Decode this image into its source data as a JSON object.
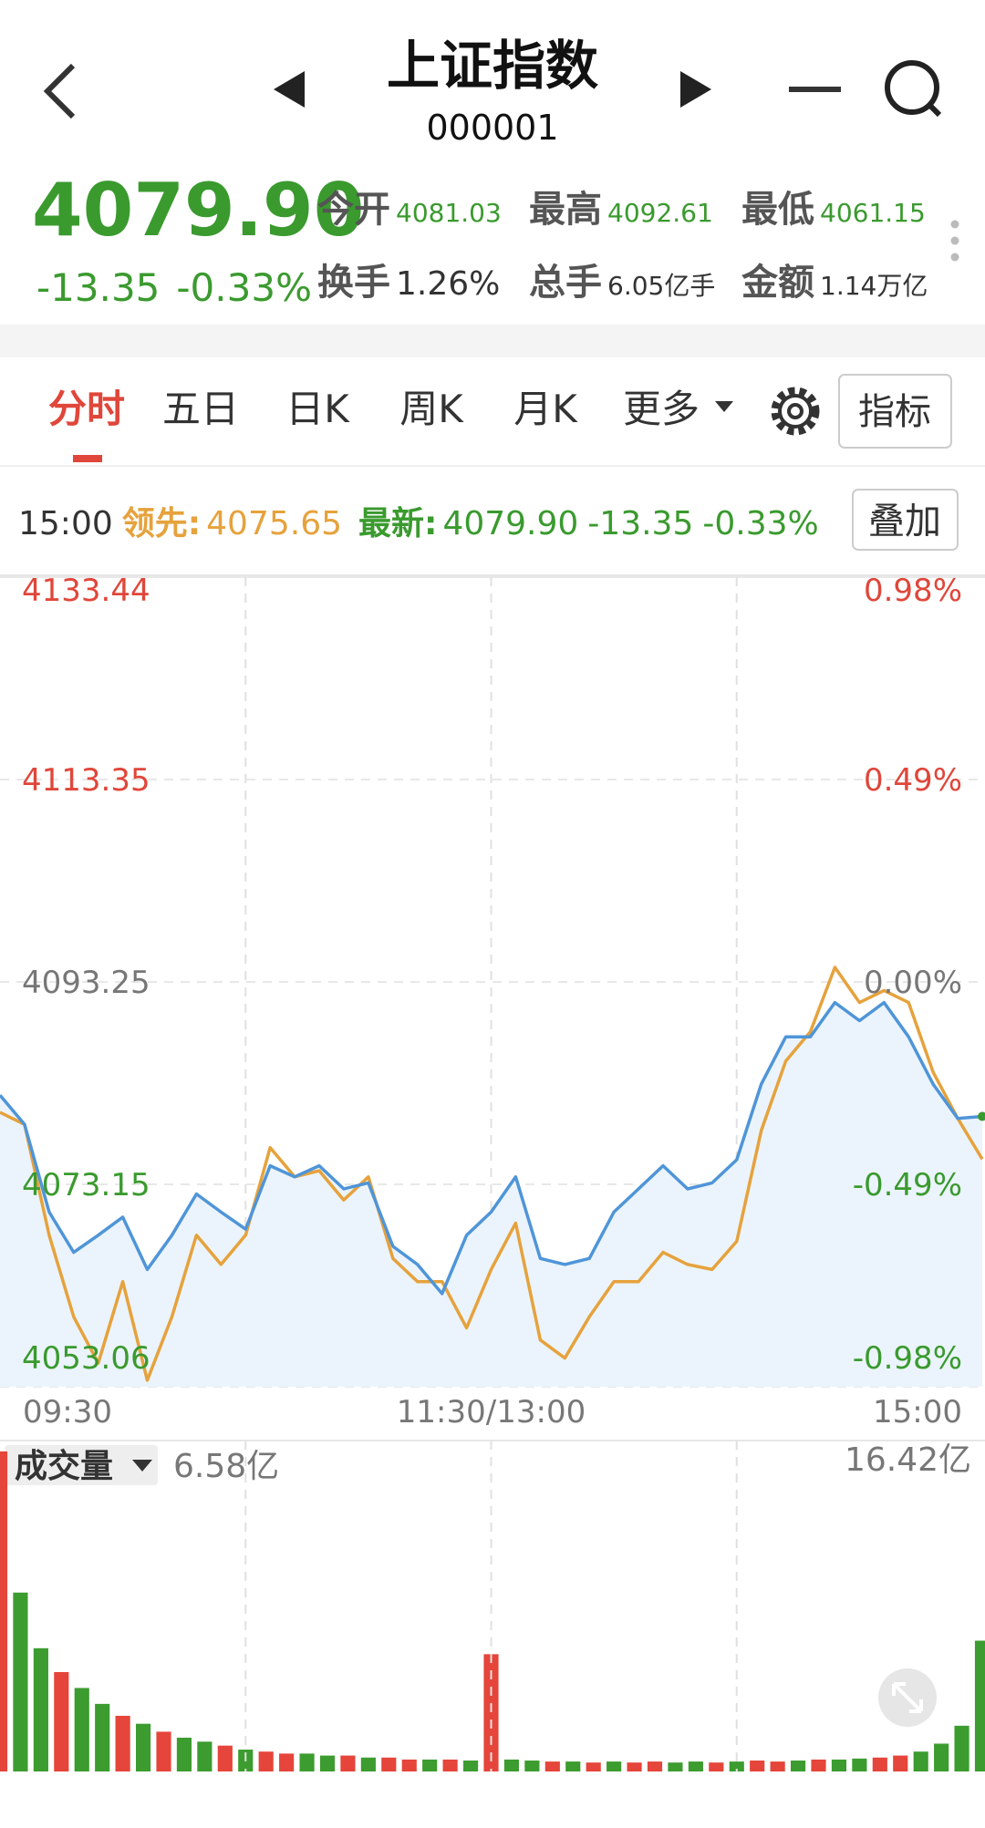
{
  "header": {
    "title": "上证指数",
    "code": "000001"
  },
  "quote": {
    "price": "4079.90",
    "change": "-13.35",
    "change_pct": "-0.33%",
    "stats": [
      {
        "label": "今开",
        "value": "4081.03"
      },
      {
        "label": "最高",
        "value": "4092.61"
      },
      {
        "label": "最低",
        "value": "4061.15"
      },
      {
        "label": "换手",
        "value": "1.26%"
      },
      {
        "label": "总手",
        "value": "6.05亿手"
      },
      {
        "label": "金额",
        "value": "1.14万亿"
      }
    ]
  },
  "tabs": [
    "分时",
    "五日",
    "日K",
    "周K",
    "月K",
    "更多"
  ],
  "indicator_button": "指标",
  "info_bar": {
    "time": "15:00",
    "leader_label": "领先:",
    "leader_value": "4075.65",
    "latest_label": "最新:",
    "latest_value": "4079.90",
    "latest_change": "-13.35",
    "latest_pct": "-0.33%",
    "overlay_button": "叠加"
  },
  "chart_data": [
    {
      "type": "line",
      "x": [
        0,
        6,
        12,
        18,
        24,
        30,
        36,
        42,
        48,
        54,
        60,
        66,
        72,
        78,
        84,
        90,
        96,
        102,
        108,
        114,
        120,
        126,
        132,
        138,
        144,
        150,
        156,
        162,
        168,
        174,
        180,
        186,
        192,
        198,
        204,
        210,
        216,
        222,
        228,
        234,
        240
      ],
      "xlim": [
        0,
        240
      ],
      "xticks": [
        {
          "value": 0,
          "label": "09:30"
        },
        {
          "value": 120,
          "label": "11:30/13:00"
        },
        {
          "value": 240,
          "label": "15:00"
        }
      ],
      "xgrid": [
        60,
        120,
        180
      ],
      "ylim": [
        4053.06,
        4133.44
      ],
      "yticks": [
        4053.06,
        4073.15,
        4093.25,
        4113.35,
        4133.44
      ],
      "y2lim": [
        -0.98,
        0.98
      ],
      "y2ticks": [
        {
          "value": -0.98,
          "label": "-0.98%"
        },
        {
          "value": -0.49,
          "label": "-0.49%"
        },
        {
          "value": 0,
          "label": "0.00%"
        },
        {
          "value": 0.49,
          "label": "0.49%"
        },
        {
          "value": 0.98,
          "label": "0.98%"
        }
      ],
      "grid": true,
      "series": [
        {
          "color": "#4f95d8",
          "area_color": "#ebf4fc",
          "values": [
            4082,
            4079.1,
            4070.4,
            4066.4,
            4068.1,
            4069.9,
            4064.7,
            4068.1,
            4072.2,
            4070.4,
            4068.7,
            4075,
            4073.9,
            4075,
            4072.7,
            4073.3,
            4067,
            4065.2,
            4062.3,
            4068.1,
            4070.4,
            4073.9,
            4065.8,
            4065.2,
            4065.8,
            4070.4,
            4072.7,
            4075,
            4072.7,
            4073.3,
            4075.6,
            4083.1,
            4087.8,
            4087.8,
            4091.2,
            4089.4,
            4091.2,
            4087.8,
            4083.1,
            4079.7,
            4079.9
          ]
        },
        {
          "color": "#e6a23c",
          "values": [
            4080.3,
            4079.1,
            4068.1,
            4060,
            4055.4,
            4063.5,
            4053.7,
            4060,
            4068.1,
            4065.2,
            4068.1,
            4076.8,
            4073.9,
            4074.5,
            4071.6,
            4073.9,
            4065.8,
            4063.5,
            4063.5,
            4058.9,
            4064.7,
            4069.3,
            4057.7,
            4055.9,
            4060,
            4063.5,
            4063.5,
            4066.4,
            4065.2,
            4064.7,
            4067.5,
            4078.5,
            4085.4,
            4088.3,
            4094.7,
            4091.2,
            4092.4,
            4091.2,
            4084.3,
            4079.7,
            4075.65
          ]
        }
      ]
    },
    {
      "type": "bar",
      "title": "成交量",
      "value_label": "6.58亿",
      "x": [
        0,
        5,
        10,
        15,
        20,
        25,
        30,
        35,
        40,
        45,
        50,
        55,
        60,
        65,
        70,
        75,
        80,
        85,
        90,
        95,
        100,
        105,
        110,
        115,
        120,
        125,
        130,
        135,
        140,
        145,
        150,
        155,
        160,
        165,
        170,
        175,
        180,
        185,
        190,
        195,
        200,
        205,
        210,
        215,
        220,
        225,
        230,
        235,
        240
      ],
      "xlim": [
        0,
        240
      ],
      "ylim": [
        0,
        16.42
      ],
      "yticks": [
        {
          "value": 16.42,
          "label": "16.42亿"
        }
      ],
      "values": [
        16.1,
        9,
        6.2,
        5,
        4.2,
        3.4,
        2.8,
        2.4,
        2,
        1.7,
        1.5,
        1.3,
        1.1,
        1,
        0.9,
        0.9,
        0.8,
        0.8,
        0.7,
        0.7,
        0.6,
        0.6,
        0.6,
        0.55,
        5.9,
        0.6,
        0.55,
        0.5,
        0.5,
        0.45,
        0.5,
        0.45,
        0.5,
        0.45,
        0.5,
        0.45,
        0.5,
        0.55,
        0.5,
        0.55,
        0.6,
        0.6,
        0.65,
        0.7,
        0.8,
        1,
        1.4,
        2.3,
        6.58
      ],
      "colors": [
        "#e5453a",
        "#3c9c2f",
        "#3c9c2f",
        "#e5453a",
        "#3c9c2f",
        "#3c9c2f",
        "#e5453a",
        "#3c9c2f",
        "#e5453a",
        "#3c9c2f",
        "#3c9c2f",
        "#e5453a",
        "#3c9c2f",
        "#e5453a",
        "#e5453a",
        "#3c9c2f",
        "#3c9c2f",
        "#e5453a",
        "#3c9c2f",
        "#e5453a",
        "#e5453a",
        "#3c9c2f",
        "#e5453a",
        "#3c9c2f",
        "#e5453a",
        "#3c9c2f",
        "#3c9c2f",
        "#e5453a",
        "#3c9c2f",
        "#e5453a",
        "#3c9c2f",
        "#e5453a",
        "#e5453a",
        "#3c9c2f",
        "#3c9c2f",
        "#e5453a",
        "#3c9c2f",
        "#e5453a",
        "#e5453a",
        "#3c9c2f",
        "#e5453a",
        "#3c9c2f",
        "#3c9c2f",
        "#e5453a",
        "#e5453a",
        "#3c9c2f",
        "#3c9c2f",
        "#3c9c2f",
        "#3c9c2f"
      ]
    }
  ]
}
